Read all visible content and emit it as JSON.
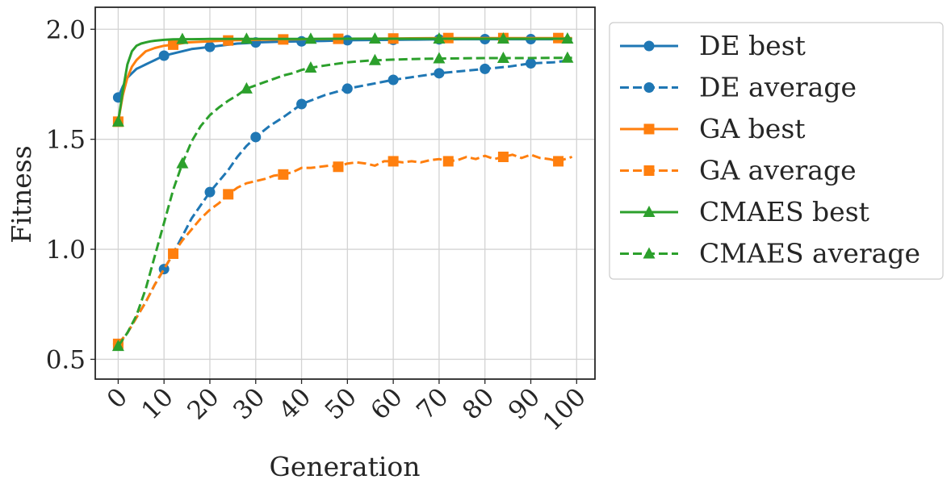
{
  "chart_data": {
    "type": "line",
    "xlabel": "Generation",
    "ylabel": "Fitness",
    "xlim": [
      -5,
      104
    ],
    "ylim": [
      0.41,
      2.1
    ],
    "xticks": [
      "0",
      "10",
      "20",
      "30",
      "40",
      "50",
      "60",
      "70",
      "80",
      "90",
      "100"
    ],
    "yticks": [
      "0.5",
      "1.0",
      "1.5",
      "2.0"
    ],
    "grid": true,
    "legend_position": "outside-right",
    "series": [
      {
        "name": "DE best",
        "color": "#1f77b4",
        "dash": "solid",
        "marker": "circle",
        "x": [
          0,
          1,
          2,
          3,
          4,
          5,
          6,
          7,
          8,
          9,
          10,
          12,
          14,
          16,
          18,
          20,
          22,
          24,
          26,
          28,
          30,
          35,
          40,
          45,
          50,
          55,
          60,
          65,
          70,
          75,
          80,
          85,
          90,
          95,
          99
        ],
        "y": [
          1.69,
          1.74,
          1.78,
          1.8,
          1.82,
          1.83,
          1.84,
          1.85,
          1.86,
          1.87,
          1.88,
          1.89,
          1.9,
          1.91,
          1.915,
          1.92,
          1.925,
          1.93,
          1.935,
          1.937,
          1.94,
          1.943,
          1.945,
          1.947,
          1.95,
          1.951,
          1.952,
          1.953,
          1.954,
          1.955,
          1.955,
          1.955,
          1.955,
          1.955,
          1.955
        ],
        "marker_x": [
          0,
          10,
          20,
          30,
          40,
          50,
          60,
          70,
          80,
          90
        ]
      },
      {
        "name": "DE average",
        "color": "#1f77b4",
        "dash": "dashed",
        "marker": "circle",
        "x": [
          0,
          2,
          4,
          6,
          8,
          10,
          12,
          14,
          16,
          18,
          20,
          22,
          24,
          26,
          28,
          30,
          33,
          36,
          40,
          45,
          50,
          55,
          60,
          65,
          70,
          75,
          80,
          85,
          90,
          95,
          99
        ],
        "y": [
          0.57,
          0.62,
          0.69,
          0.76,
          0.84,
          0.91,
          0.98,
          1.06,
          1.14,
          1.2,
          1.26,
          1.31,
          1.36,
          1.42,
          1.47,
          1.51,
          1.56,
          1.6,
          1.66,
          1.7,
          1.73,
          1.75,
          1.77,
          1.785,
          1.8,
          1.81,
          1.82,
          1.83,
          1.845,
          1.85,
          1.86
        ],
        "marker_x": [
          0,
          10,
          20,
          30,
          40,
          50,
          60,
          70,
          80,
          90
        ]
      },
      {
        "name": "GA best",
        "color": "#ff7f0e",
        "dash": "solid",
        "marker": "square",
        "x": [
          0,
          1,
          2,
          3,
          4,
          5,
          6,
          8,
          10,
          12,
          15,
          20,
          25,
          30,
          40,
          50,
          60,
          70,
          80,
          90,
          99
        ],
        "y": [
          1.58,
          1.7,
          1.78,
          1.83,
          1.86,
          1.88,
          1.9,
          1.915,
          1.925,
          1.93,
          1.94,
          1.945,
          1.95,
          1.952,
          1.955,
          1.957,
          1.958,
          1.96,
          1.96,
          1.96,
          1.96
        ],
        "marker_x": [
          0,
          12,
          24,
          36,
          48,
          60,
          72,
          84,
          96
        ]
      },
      {
        "name": "GA average",
        "color": "#ff7f0e",
        "dash": "dashed",
        "marker": "square",
        "x": [
          0,
          2,
          4,
          6,
          8,
          10,
          12,
          14,
          16,
          18,
          20,
          22,
          24,
          26,
          28,
          30,
          32,
          34,
          36,
          38,
          40,
          42,
          44,
          46,
          48,
          50,
          52,
          54,
          56,
          58,
          60,
          62,
          64,
          66,
          68,
          70,
          72,
          74,
          76,
          78,
          80,
          82,
          84,
          86,
          88,
          90,
          92,
          94,
          96,
          99
        ],
        "y": [
          0.57,
          0.62,
          0.69,
          0.76,
          0.84,
          0.91,
          0.98,
          1.04,
          1.09,
          1.14,
          1.18,
          1.21,
          1.25,
          1.28,
          1.3,
          1.31,
          1.32,
          1.335,
          1.34,
          1.35,
          1.37,
          1.37,
          1.375,
          1.38,
          1.375,
          1.39,
          1.395,
          1.39,
          1.38,
          1.4,
          1.4,
          1.395,
          1.4,
          1.395,
          1.405,
          1.41,
          1.4,
          1.405,
          1.42,
          1.41,
          1.425,
          1.41,
          1.42,
          1.43,
          1.415,
          1.43,
          1.415,
          1.41,
          1.4,
          1.42
        ],
        "marker_x": [
          0,
          12,
          24,
          36,
          48,
          60,
          72,
          84,
          96
        ]
      },
      {
        "name": "CMAES best",
        "color": "#2ca02c",
        "dash": "solid",
        "marker": "triangle",
        "x": [
          0,
          1,
          2,
          3,
          4,
          5,
          6,
          7,
          8,
          10,
          12,
          14,
          16,
          20,
          30,
          40,
          50,
          60,
          70,
          80,
          90,
          99
        ],
        "y": [
          1.58,
          1.72,
          1.84,
          1.9,
          1.925,
          1.935,
          1.94,
          1.945,
          1.948,
          1.952,
          1.954,
          1.955,
          1.955,
          1.956,
          1.956,
          1.956,
          1.957,
          1.957,
          1.957,
          1.957,
          1.957,
          1.957
        ],
        "marker_x": [
          0,
          14,
          28,
          42,
          56,
          70,
          84,
          98
        ]
      },
      {
        "name": "CMAES average",
        "color": "#2ca02c",
        "dash": "dashed",
        "marker": "triangle",
        "x": [
          0,
          2,
          4,
          6,
          8,
          10,
          12,
          14,
          16,
          18,
          20,
          22,
          24,
          26,
          28,
          30,
          32,
          34,
          36,
          38,
          40,
          42,
          45,
          50,
          55,
          60,
          65,
          70,
          75,
          80,
          85,
          90,
          95,
          99
        ],
        "y": [
          0.56,
          0.62,
          0.7,
          0.82,
          0.97,
          1.12,
          1.27,
          1.39,
          1.49,
          1.56,
          1.61,
          1.645,
          1.675,
          1.7,
          1.73,
          1.745,
          1.76,
          1.775,
          1.79,
          1.8,
          1.815,
          1.825,
          1.835,
          1.85,
          1.858,
          1.862,
          1.865,
          1.867,
          1.868,
          1.869,
          1.869,
          1.869,
          1.87,
          1.87
        ],
        "marker_x": [
          0,
          14,
          28,
          42,
          56,
          70,
          84,
          98
        ]
      }
    ]
  }
}
